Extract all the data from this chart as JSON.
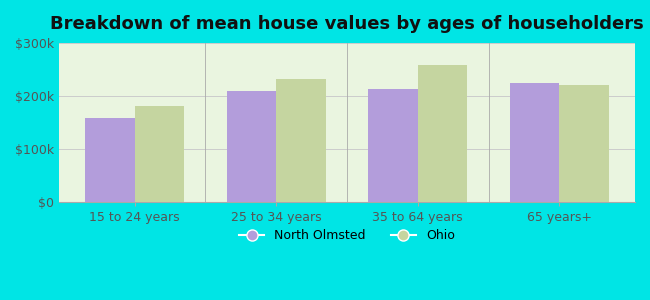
{
  "title": "Breakdown of mean house values by ages of householders",
  "categories": [
    "15 to 24 years",
    "25 to 34 years",
    "35 to 64 years",
    "65 years+"
  ],
  "north_olmsted": [
    158000,
    210000,
    213000,
    225000
  ],
  "ohio": [
    182000,
    232000,
    258000,
    220000
  ],
  "bar_color_no": "#b39ddb",
  "bar_color_oh": "#c5d5a0",
  "background_color": "#00e5e5",
  "plot_bg_color": "#eaf5e0",
  "ylim": [
    0,
    300000
  ],
  "yticks": [
    0,
    100000,
    200000,
    300000
  ],
  "ytick_labels": [
    "$0",
    "$100k",
    "$200k",
    "$300k"
  ],
  "legend_labels": [
    "North Olmsted",
    "Ohio"
  ],
  "title_fontsize": 13,
  "tick_fontsize": 9,
  "legend_fontsize": 9
}
